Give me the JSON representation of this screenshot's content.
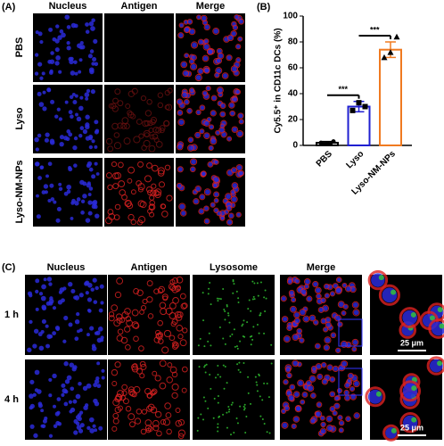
{
  "figure": {
    "panel_labels": [
      "(A)",
      "(B)",
      "(C)"
    ]
  },
  "panel_a": {
    "columns": [
      "Nucleus",
      "Antigen",
      "Merge"
    ],
    "rows": [
      "PBS",
      "Lyso",
      "Lyso-NM-NPs"
    ]
  },
  "panel_c": {
    "columns": [
      "Nucleus",
      "Antigen",
      "Lysosome",
      "Merge"
    ],
    "rows": [
      "1 h",
      "4 h"
    ],
    "scale_bar": "25 μm"
  },
  "chart_data": {
    "type": "bar",
    "ylabel": "Cy5.5⁺ in CD11c DCs (%)",
    "categories": [
      "PBS",
      "Lyso",
      "Lyso-NM-NPs"
    ],
    "values": [
      2,
      30,
      74
    ],
    "errors": [
      1,
      4,
      6
    ],
    "colors": [
      "#000000",
      "#1f1fd0",
      "#f07a20"
    ],
    "points": [
      [
        2,
        1.5,
        3
      ],
      [
        27,
        33,
        30
      ],
      [
        68,
        72,
        84
      ]
    ],
    "markers": [
      "circle",
      "square",
      "triangle"
    ],
    "ylim": [
      0,
      100
    ],
    "yticks": [
      0,
      20,
      40,
      60,
      80,
      100
    ],
    "significance": [
      {
        "pair": [
          "PBS",
          "Lyso"
        ],
        "label": "***"
      },
      {
        "pair": [
          "Lyso",
          "Lyso-NM-NPs"
        ],
        "label": "***"
      }
    ]
  }
}
